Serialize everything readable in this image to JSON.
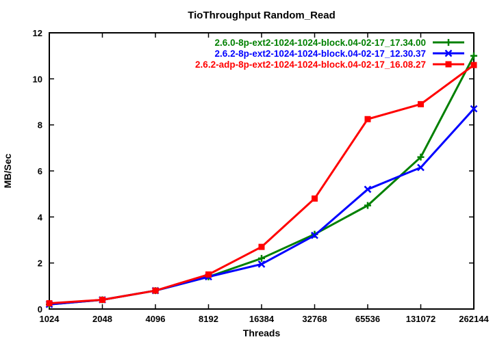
{
  "window": {
    "background": "#ffffff"
  },
  "chart_data": {
    "type": "line",
    "title": "TioThroughput Random_Read",
    "xlabel": "Threads",
    "ylabel": "MB/Sec",
    "x_scale": "log2 (categories equally spaced)",
    "categories": [
      "1024",
      "2048",
      "4096",
      "8192",
      "16384",
      "32768",
      "65536",
      "131072",
      "262144"
    ],
    "y_ticks": [
      "0",
      "2",
      "4",
      "6",
      "8",
      "10",
      "12"
    ],
    "ylim": [
      0,
      12
    ],
    "grid": "off",
    "legend_position": "top-right-inside",
    "border_color": "#000000",
    "series": [
      {
        "name": "2.6.0-8p-ext2-1024-1024-block.04-02-17_17.34.00",
        "color": "#008000",
        "marker": "plus",
        "values": [
          0.2,
          0.4,
          0.8,
          1.4,
          2.2,
          3.25,
          4.5,
          6.6,
          11.0
        ]
      },
      {
        "name": "2.6.2-8p-ext2-1024-1024-block.04-02-17_12.30.37",
        "color": "#0000ff",
        "marker": "x",
        "values": [
          0.2,
          0.4,
          0.8,
          1.4,
          1.95,
          3.2,
          5.2,
          6.15,
          8.7
        ]
      },
      {
        "name": "2.6.2-adp-8p-ext2-1024-1024-block.04-02-17_16.08.27",
        "color": "#ff0000",
        "marker": "square",
        "values": [
          0.25,
          0.4,
          0.8,
          1.5,
          2.7,
          4.8,
          8.25,
          8.9,
          10.6
        ]
      }
    ]
  }
}
